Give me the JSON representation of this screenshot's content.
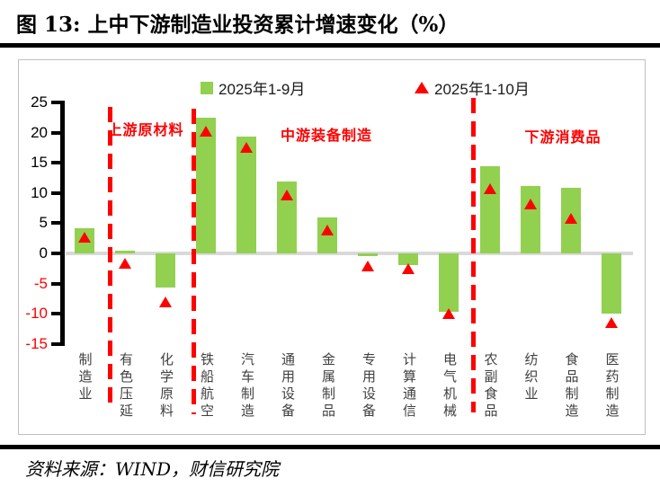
{
  "title": "图 13:  上中下游制造业投资累计增速变化（%）",
  "source": "资料来源：WIND，财信研究院",
  "legend": {
    "bar_series_label": "2025年1-9月",
    "triangle_series_label": "2025年1-10月"
  },
  "colors": {
    "bar": "#92D050",
    "marker": "#FF0000",
    "section_label": "#FF0000",
    "separator": "#FF0000",
    "zero_line": "#D9D9D9",
    "tick_positive": "#000000",
    "tick_negative": "#FF0000"
  },
  "chart_data": {
    "type": "bar",
    "title": "上中下游制造业投资累计增速变化（%）",
    "categories": [
      "制造业",
      "有色压延",
      "化学原料",
      "铁船航空",
      "汽车制造",
      "通用设备",
      "金属制品",
      "专用设备",
      "计算通信",
      "电气机械",
      "农副食品",
      "纺织业",
      "食品制造",
      "医药制造"
    ],
    "series": [
      {
        "name": "2025年1-9月",
        "type": "bar",
        "color": "#92D050",
        "values": [
          4.1,
          0.4,
          -5.7,
          22.4,
          19.3,
          11.9,
          5.9,
          -0.5,
          -2.0,
          -9.6,
          14.4,
          11.2,
          10.8,
          -10.0
        ]
      },
      {
        "name": "2025年1-10月",
        "type": "triangle-marker",
        "color": "#FF0000",
        "values": [
          2.7,
          -1.6,
          -8.1,
          20.3,
          17.6,
          9.6,
          3.8,
          -2.1,
          -2.5,
          -9.9,
          10.7,
          8.2,
          5.8,
          -11.4
        ]
      }
    ],
    "ylabel": "",
    "xlabel": "",
    "ylim": [
      -15,
      25
    ],
    "yticks": [
      25,
      20,
      15,
      10,
      5,
      0,
      -5,
      -10,
      -15
    ],
    "grid": "zero-line-only",
    "legend_position": "top",
    "sections": [
      "上游原材料",
      "中游装备制造",
      "下游消费品"
    ],
    "section_boundaries_after_category": [
      1,
      3,
      10
    ]
  }
}
